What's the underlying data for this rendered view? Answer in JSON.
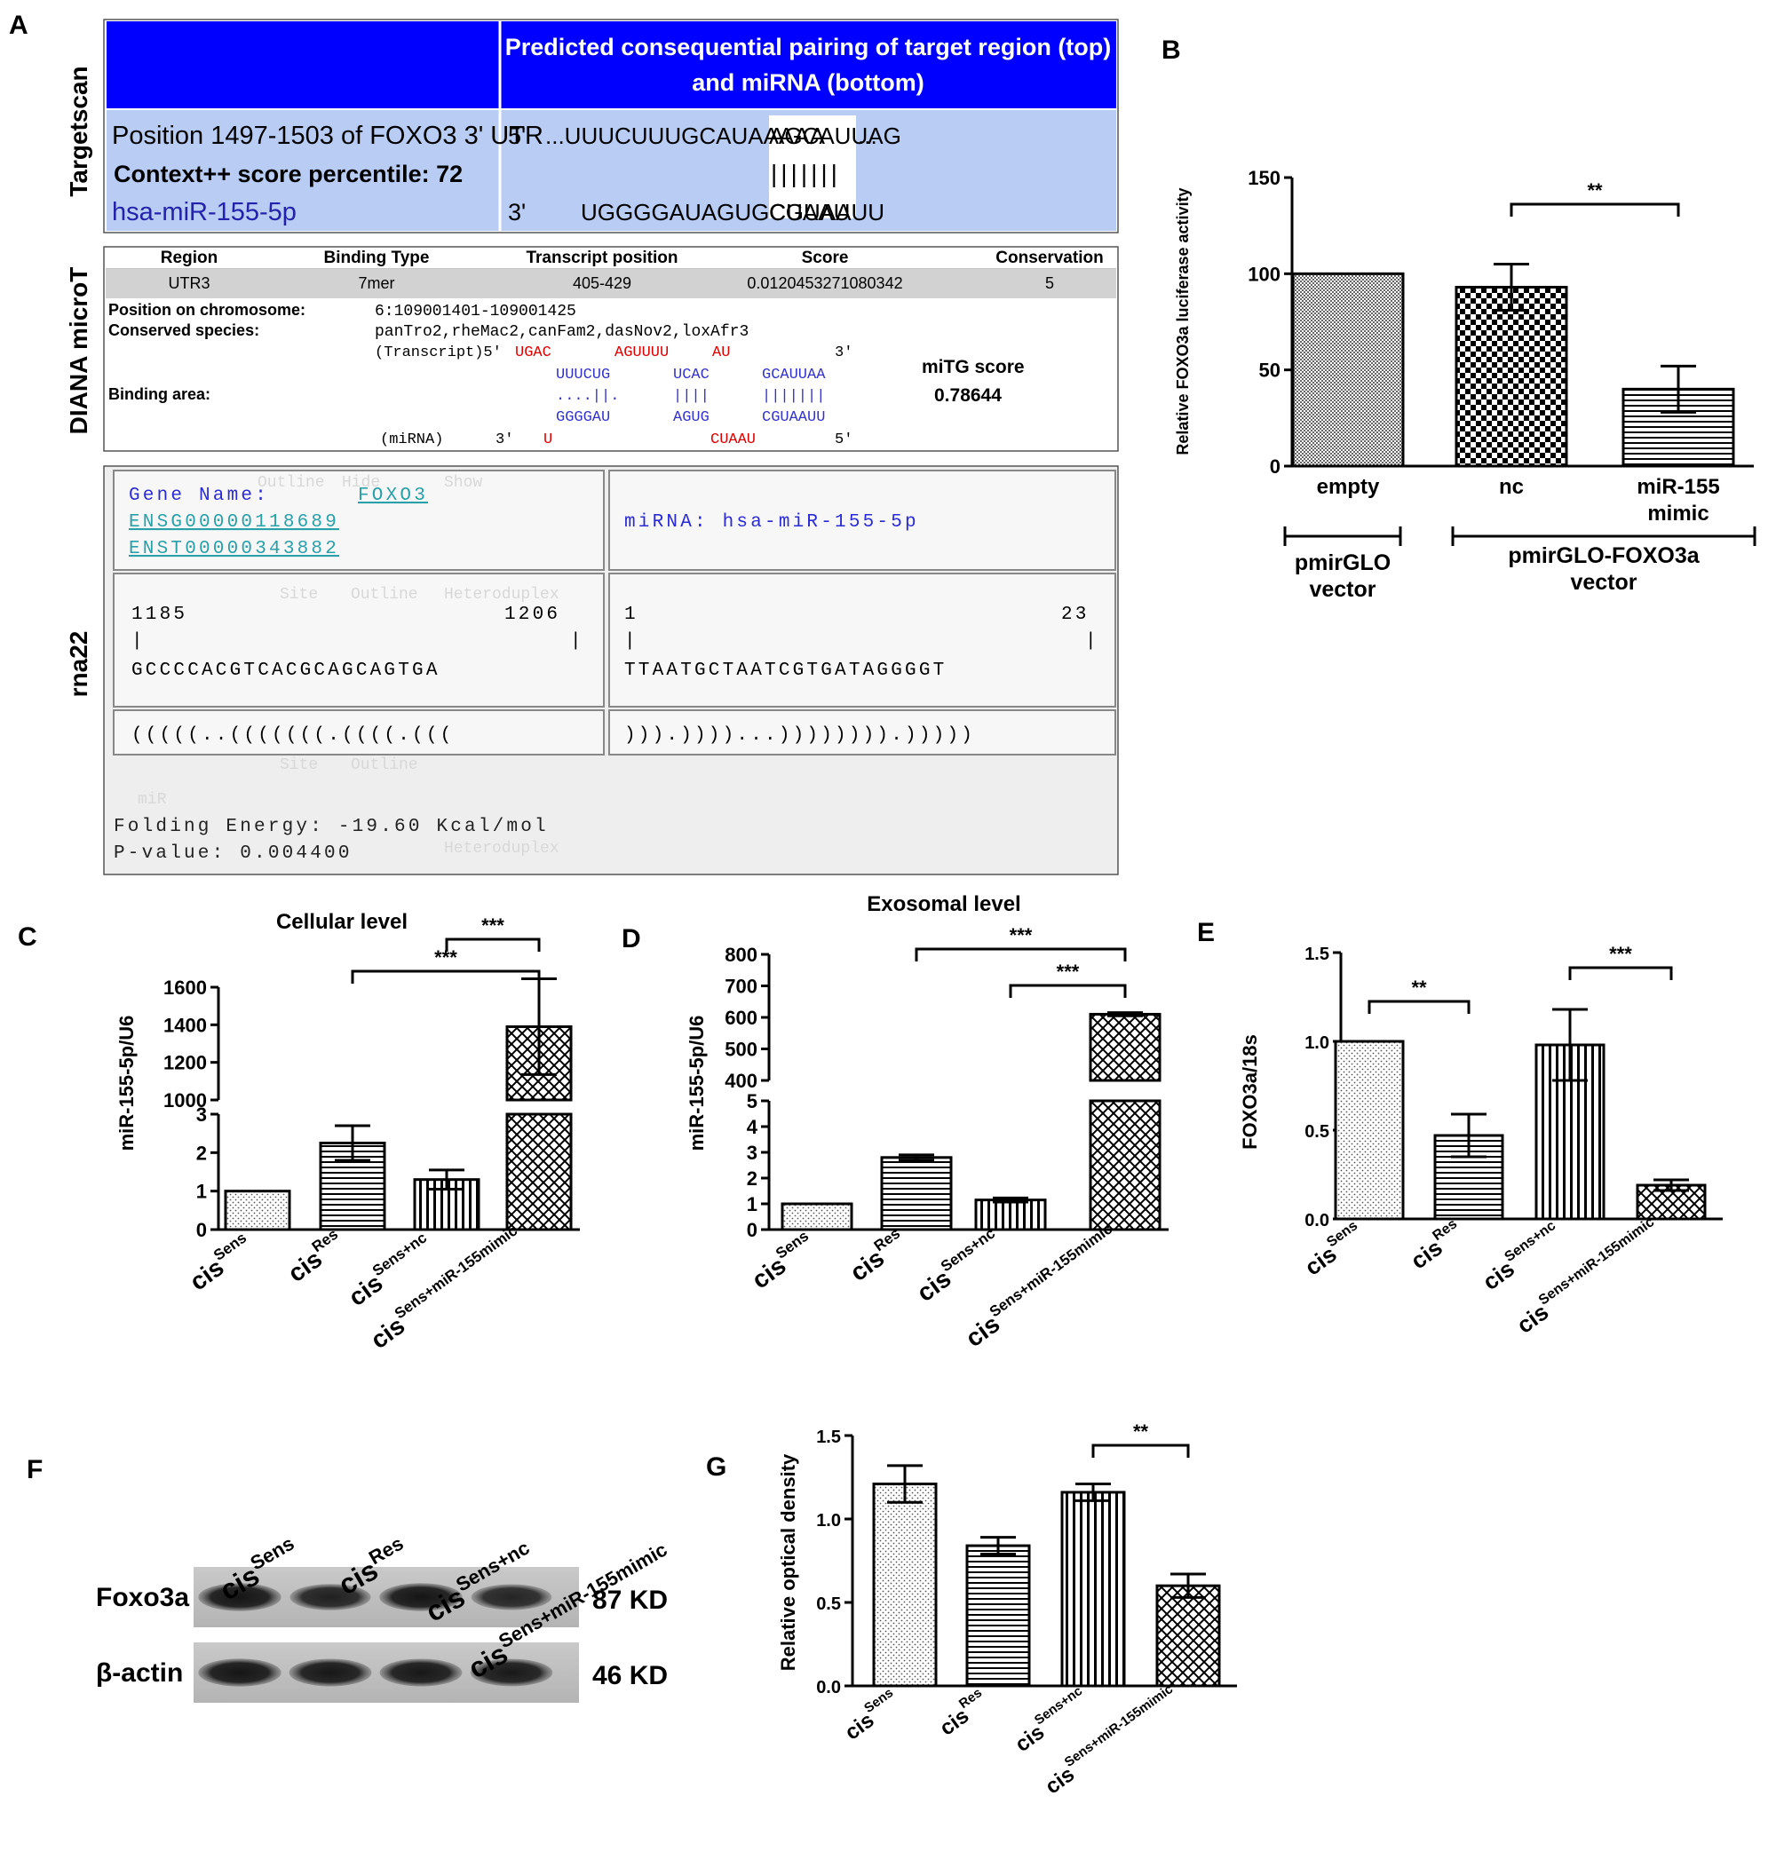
{
  "panel_letters": {
    "A": "A",
    "B": "B",
    "C": "C",
    "D": "D",
    "E": "E",
    "F": "F",
    "G": "G"
  },
  "panel_a": {
    "section_labels": {
      "targetscan": "Targetscan",
      "diana": "DIANA microT",
      "rna22": "rna22"
    },
    "targetscan": {
      "header": [
        "Predicted consequential pairing of target region (top)",
        "and miRNA (bottom)"
      ],
      "position": "Position 1497-1503 of FOXO3 3' UTR",
      "context": "Context++ score percentile: 72",
      "mirna": "hsa-miR-155-5p",
      "five_prime": "5'",
      "three_prime": "3'",
      "target_seq_a": "...UUUCUUUGCAUAAAAA",
      "target_seq_b": "AGCAUUAG",
      "target_seq_c": "...",
      "pairing": "|||||||",
      "mirna_seq_a": "UGGGGAUAGUGCUAAU",
      "mirna_seq_b": "CGUAAUU"
    },
    "diana": {
      "headers": [
        "Region",
        "Binding Type",
        "Transcript position",
        "Score",
        "Conservation"
      ],
      "row": [
        "UTR3",
        "7mer",
        "405-429",
        "0.0120453271080342",
        "5"
      ],
      "position_label": "Position on chromosome:",
      "position_value": "6:109001401-109001425",
      "conserved_label": "Conserved species:",
      "conserved_value": "panTro2,rheMac2,canFam2,dasNov2,loxAfr3",
      "transcript_label": "(Transcript)5'",
      "transcript_red": [
        "UGAC",
        "AGUUUU",
        "AU"
      ],
      "transcript_end": "3'",
      "binding_label": "Binding area:",
      "bind_top": [
        "UUUCUG",
        "UCAC",
        "GCAUUAA"
      ],
      "bind_mid": [
        "....||.",
        "||||",
        "|||||||"
      ],
      "bind_bot": [
        "GGGGAU",
        "AGUG",
        "CGUAAUU"
      ],
      "mirna_label": "(miRNA)",
      "mirna_3": "3'",
      "mirna_red": [
        "U",
        "CUAAU"
      ],
      "mirna_5": "5'",
      "mitg_label": "miTG score",
      "mitg_value": "0.78644"
    },
    "rna22": {
      "gene_label": "Gene Name:",
      "gene_value": "FOXO3",
      "ensg": "ENSG00000118689",
      "enst": "ENST00000343882",
      "mirna_line": "miRNA: hsa-miR-155-5p",
      "left_start": "1185",
      "left_end": "1206",
      "right_start": "1",
      "right_end": "23",
      "tick": "|",
      "left_seq": "GCCCCACGTCACGCAGCAGTGA",
      "right_seq": "TTAATGCTAATCGTGATAGGGGT",
      "left_struct": "(((((..(((((((.((((.(((",
      "right_struct": "))).))))...)))))))).)))))",
      "energy": "Folding Energy: -19.60 Kcal/mol",
      "pvalue": "P-value: 0.004400",
      "ghost_words": [
        "Outline",
        "Hide",
        "Show",
        "Site",
        "Outline",
        "Heteroduplex",
        "miR",
        "Site",
        "Outline",
        "Heteroduplex"
      ]
    }
  },
  "western": {
    "lane_labels": [
      {
        "base": "cis",
        "sup": "Sens"
      },
      {
        "base": "cis",
        "sup": "Res"
      },
      {
        "base": "cis",
        "sup": "Sens+nc"
      },
      {
        "base": "cis",
        "sup": "Sens+miR-155mimic"
      }
    ],
    "rows": [
      {
        "protein": "Foxo3a",
        "size": "87 KD",
        "band_strength": [
          0.95,
          0.8,
          0.95,
          0.75
        ]
      },
      {
        "protein": "β-actin",
        "size": "46 KD",
        "band_strength": [
          0.95,
          0.92,
          0.92,
          0.9
        ]
      }
    ]
  },
  "chart_data": [
    {
      "id": "B",
      "type": "bar",
      "categories": [
        "empty",
        "nc",
        "miR-155 mimic"
      ],
      "category_lines": [
        [
          "empty"
        ],
        [
          "nc"
        ],
        [
          "miR-155",
          "mimic"
        ]
      ],
      "values": [
        100,
        93,
        40
      ],
      "errors": [
        0,
        12,
        12
      ],
      "patterns": [
        "fine",
        "checker",
        "hlines"
      ],
      "ylabel": "Relative FOXO3a luciferase activity",
      "ylim": [
        0,
        150
      ],
      "yticks": [
        0,
        50,
        100,
        150
      ],
      "significance": [
        {
          "from": 1,
          "to": 2,
          "label": "**"
        }
      ],
      "groups": [
        {
          "from": 0,
          "to": 0,
          "lines": [
            "pmirGLO",
            "vector"
          ]
        },
        {
          "from": 1,
          "to": 2,
          "lines": [
            "pmirGLO-FOXO3a",
            "vector"
          ]
        }
      ]
    },
    {
      "id": "C",
      "type": "bar",
      "title": "Cellular level",
      "categories": [
        "cisSens",
        "cisRes",
        "cisSens+nc",
        "cisSens+miR-155mimic"
      ],
      "values": [
        1,
        2.25,
        1.3,
        1390
      ],
      "errors": [
        0,
        0.45,
        0.25,
        255
      ],
      "patterns": [
        "dots",
        "hlines",
        "vlines",
        "crosshatch"
      ],
      "ylabel": "miR-155-5p/U6",
      "axis_break": {
        "lower": [
          0,
          3
        ],
        "upper": [
          1000,
          1600
        ]
      },
      "lower_ticks": [
        0,
        1,
        2,
        3
      ],
      "upper_ticks": [
        1000,
        1200,
        1400,
        1600
      ],
      "significance": [
        {
          "from": 2,
          "to": 3,
          "label": "***"
        },
        {
          "from": 1,
          "to": 3,
          "label": "***"
        }
      ]
    },
    {
      "id": "D",
      "type": "bar",
      "title": "Exosomal level",
      "categories": [
        "cisSens",
        "cisRes",
        "cisSens+nc",
        "cisSens+miR-155mimic"
      ],
      "values": [
        1,
        2.8,
        1.15,
        610
      ],
      "errors": [
        0,
        0.1,
        0.08,
        5
      ],
      "patterns": [
        "dots",
        "hlines",
        "vlines",
        "crosshatch"
      ],
      "ylabel": "miR-155-5p/U6",
      "axis_break": {
        "lower": [
          0,
          5
        ],
        "upper": [
          400,
          800
        ]
      },
      "lower_ticks": [
        0,
        1,
        2,
        3,
        4,
        5
      ],
      "upper_ticks": [
        400,
        500,
        600,
        700,
        800
      ],
      "significance": [
        {
          "from": 1,
          "to": 3,
          "label": "***"
        },
        {
          "from": 2,
          "to": 3,
          "label": "***"
        }
      ]
    },
    {
      "id": "E",
      "type": "bar",
      "categories": [
        "cisSens",
        "cisRes",
        "cisSens+nc",
        "cisSens+miR-155mimic"
      ],
      "values": [
        1.0,
        0.47,
        0.98,
        0.19
      ],
      "errors": [
        0,
        0.12,
        0.2,
        0.03
      ],
      "patterns": [
        "dots",
        "hlines",
        "vlines",
        "crosshatch"
      ],
      "ylabel": "FOXO3a/18s",
      "ylim": [
        0,
        1.5
      ],
      "yticks": [
        "0.0",
        "0.5",
        "1.0",
        "1.5"
      ],
      "significance": [
        {
          "from": 0,
          "to": 1,
          "label": "**"
        },
        {
          "from": 2,
          "to": 3,
          "label": "***"
        }
      ]
    },
    {
      "id": "G",
      "type": "bar",
      "categories": [
        "cisSens",
        "cisRes",
        "cisSens+nc",
        "cisSens+miR-155mimic"
      ],
      "values": [
        1.21,
        0.84,
        1.16,
        0.6
      ],
      "errors": [
        0.11,
        0.05,
        0.05,
        0.07
      ],
      "patterns": [
        "dots",
        "hlines",
        "vlines",
        "crosshatch"
      ],
      "ylabel": "Relative optical density",
      "ylim": [
        0,
        1.5
      ],
      "yticks": [
        "0.0",
        "0.5",
        "1.0",
        "1.5"
      ],
      "significance": [
        {
          "from": 2,
          "to": 3,
          "label": "**"
        }
      ]
    }
  ],
  "tick_labels": [
    {
      "base": "cis",
      "sup": "Sens"
    },
    {
      "base": "cis",
      "sup": "Res"
    },
    {
      "base": "cis",
      "sup": "Sens+nc"
    },
    {
      "base": "cis",
      "sup": "Sens+miR-155mimic"
    }
  ]
}
